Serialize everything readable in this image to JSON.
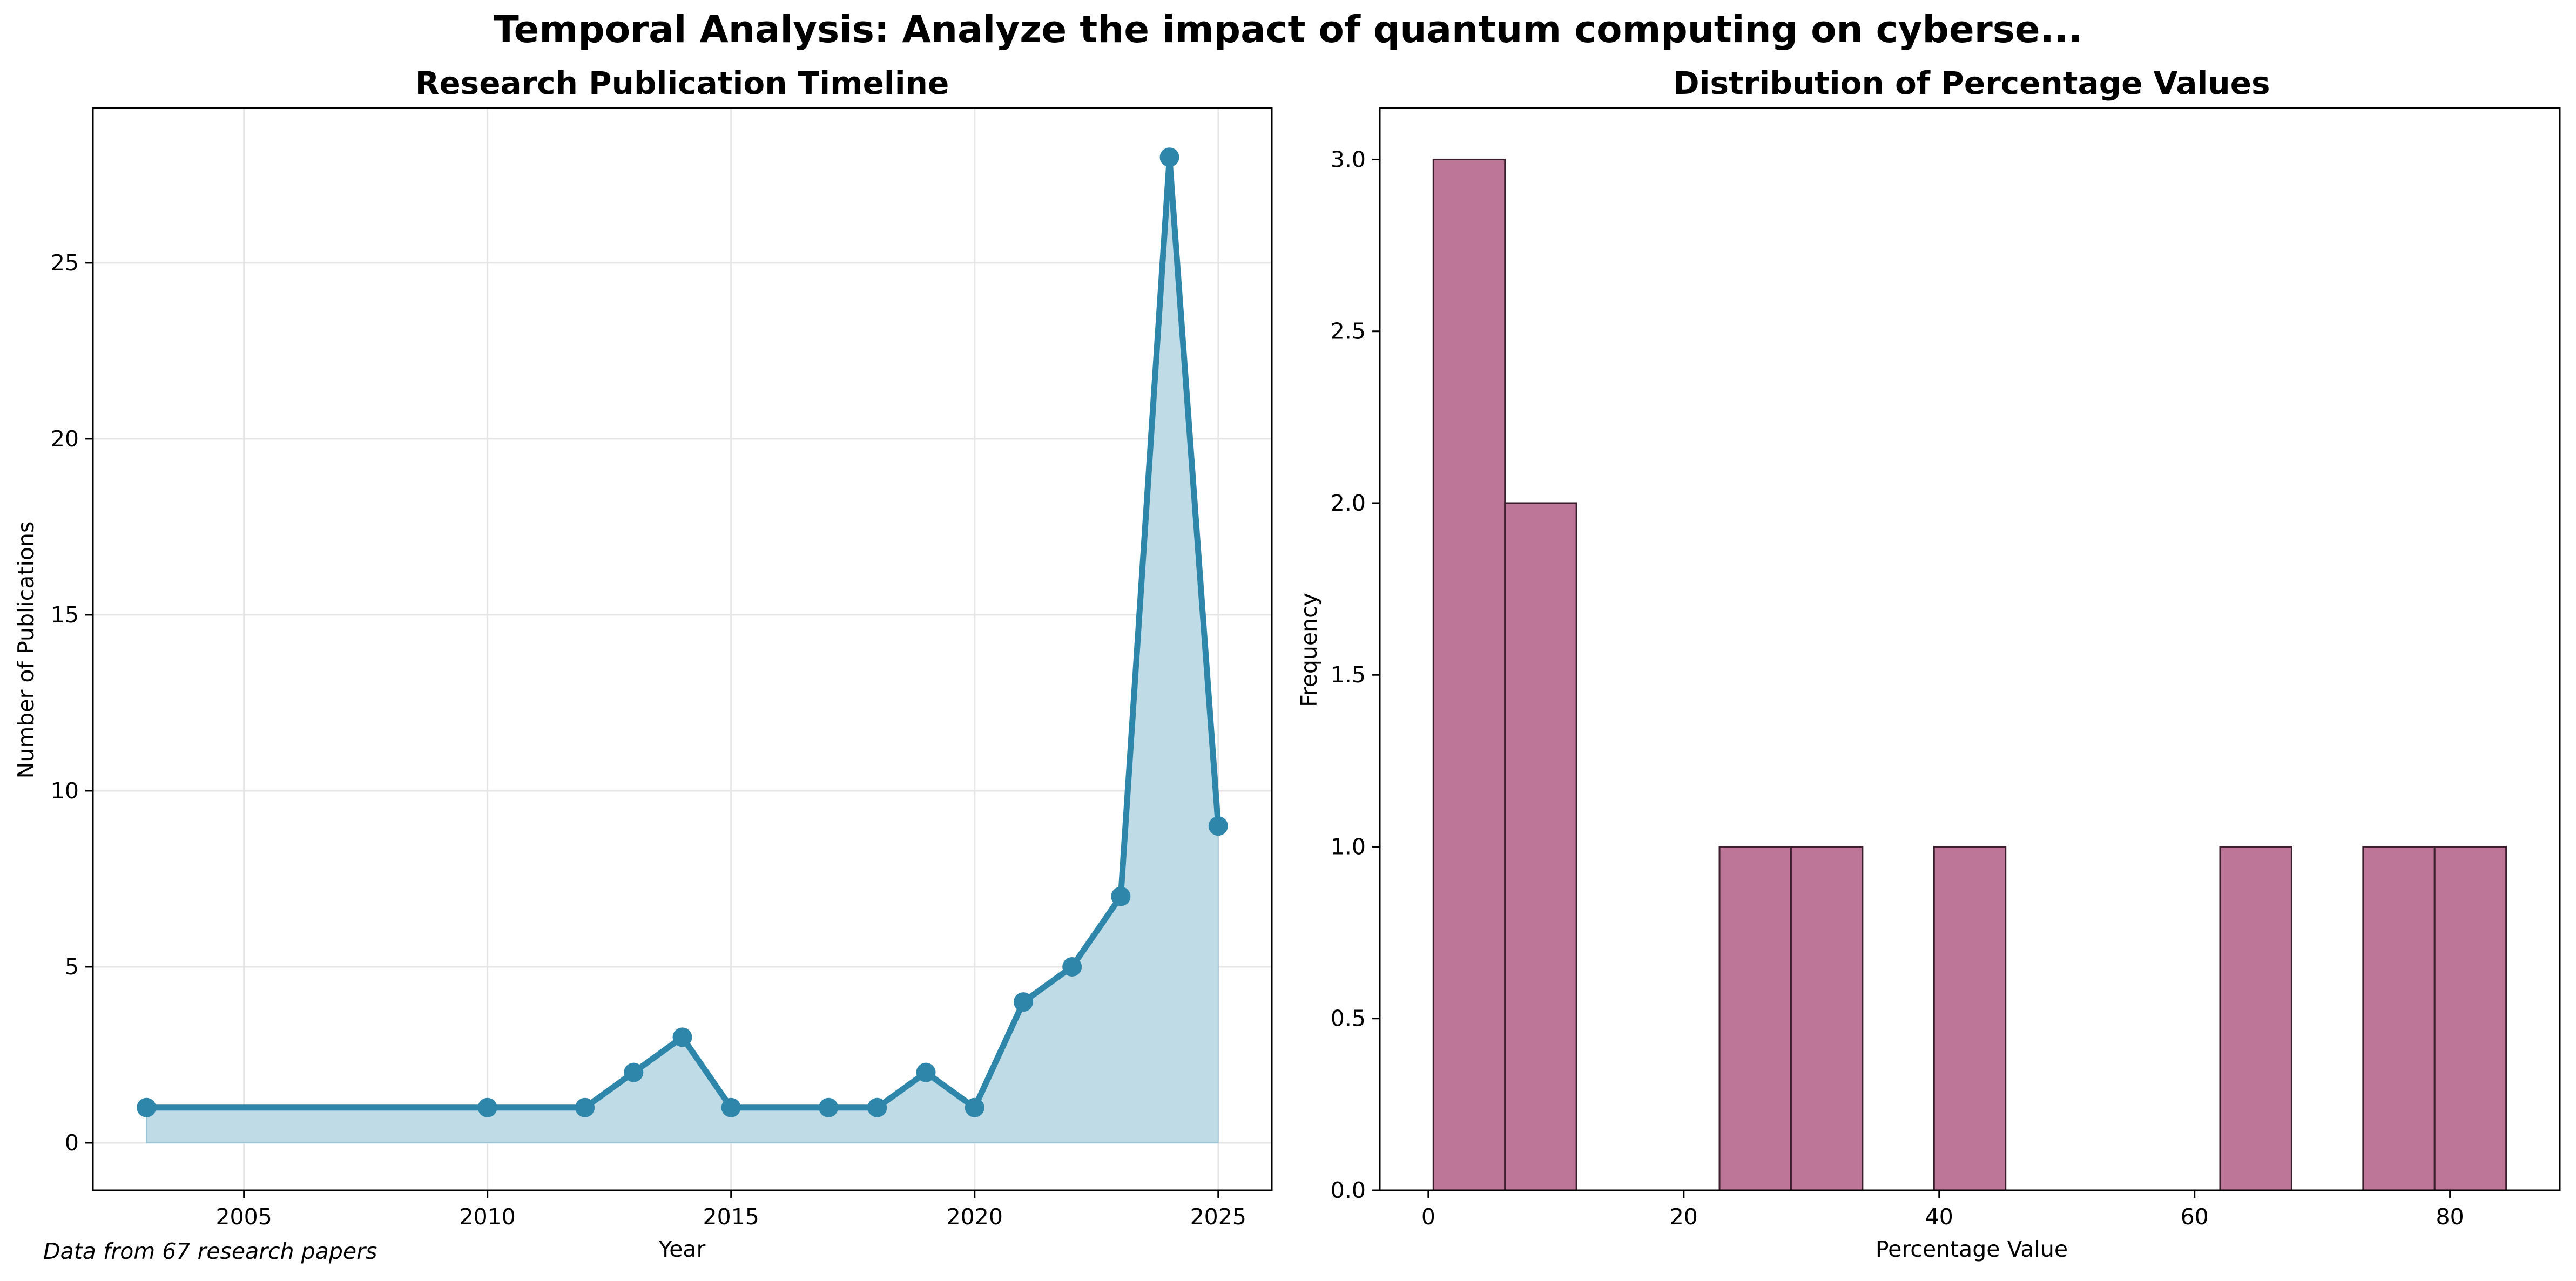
{
  "figure": {
    "suptitle": "Temporal Analysis: Analyze the impact of quantum computing on cyberse...",
    "footnote": "Data from 67 research papers"
  },
  "chart_data": [
    {
      "type": "line",
      "title": "Research Publication Timeline",
      "xlabel": "Year",
      "ylabel": "Number of Publications",
      "x": [
        2003,
        2010,
        2012,
        2013,
        2014,
        2015,
        2017,
        2018,
        2019,
        2020,
        2021,
        2022,
        2023,
        2024,
        2025
      ],
      "y": [
        1,
        1,
        1,
        2,
        3,
        1,
        1,
        1,
        2,
        1,
        4,
        5,
        7,
        28,
        9
      ],
      "area_fill": true,
      "markers": true,
      "xlim": [
        2001.9,
        2026.1
      ],
      "ylim": [
        -1.35,
        29.4
      ],
      "xticks": [
        "2005",
        "2010",
        "2015",
        "2020",
        "2025"
      ],
      "yticks": [
        "0",
        "5",
        "10",
        "15",
        "20",
        "25"
      ],
      "grid": true,
      "color": "#2e86ab",
      "fill_color": "#bedbe6"
    },
    {
      "type": "bar",
      "subtype": "histogram",
      "title": "Distribution of Percentage Values",
      "xlabel": "Percentage Value",
      "ylabel": "Frequency",
      "bin_edges": [
        0.4,
        6.0,
        11.6,
        17.2,
        22.8,
        28.4,
        34.0,
        39.6,
        45.2,
        50.8,
        56.4,
        62.0,
        67.6,
        73.2,
        78.8,
        84.4
      ],
      "values": [
        3,
        2,
        0,
        0,
        1,
        1,
        0,
        1,
        0,
        0,
        0,
        1,
        0,
        1,
        1
      ],
      "xlim": [
        -3.8,
        88.6
      ],
      "ylim": [
        0,
        3.15
      ],
      "xticks": [
        "0",
        "20",
        "40",
        "60",
        "80"
      ],
      "yticks": [
        "0.0",
        "0.5",
        "1.0",
        "1.5",
        "2.0",
        "2.5",
        "3.0"
      ],
      "grid": false,
      "color": "#bd7598",
      "edge_color": "#3a1f2d"
    }
  ]
}
